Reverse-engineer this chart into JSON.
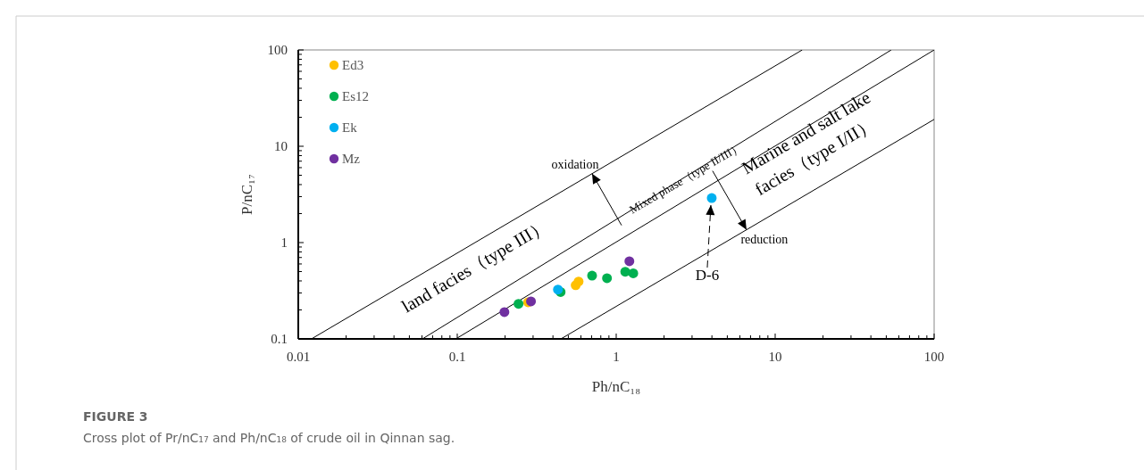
{
  "chart_data": {
    "type": "scatter",
    "xlabel": "Ph/nC₁₈",
    "ylabel": "P/nC₁₇",
    "log": "xy",
    "grid": false,
    "legend": "top left",
    "marker": "circle",
    "xlim": [
      0.01,
      100
    ],
    "ylim": [
      0.1,
      100
    ],
    "xticks": [
      0.01,
      {
        "value": 0.02,
        "label": null
      },
      {
        "value": 0.03,
        "label": null
      },
      {
        "value": 0.04,
        "label": null
      },
      {
        "value": 0.05,
        "label": null
      },
      {
        "value": 0.06,
        "label": null
      },
      {
        "value": 0.07,
        "label": null
      },
      {
        "value": 0.08,
        "label": null
      },
      {
        "value": 0.09,
        "label": null
      },
      0.1,
      {
        "value": 0.2,
        "label": null
      },
      {
        "value": 0.3,
        "label": null
      },
      {
        "value": 0.4,
        "label": null
      },
      {
        "value": 0.5,
        "label": null
      },
      {
        "value": 0.6,
        "label": null
      },
      {
        "value": 0.7,
        "label": null
      },
      {
        "value": 0.8,
        "label": null
      },
      {
        "value": 0.9,
        "label": null
      },
      1,
      {
        "value": 2,
        "label": null
      },
      {
        "value": 3,
        "label": null
      },
      {
        "value": 4,
        "label": null
      },
      {
        "value": 5,
        "label": null
      },
      {
        "value": 6,
        "label": null
      },
      {
        "value": 7,
        "label": null
      },
      {
        "value": 8,
        "label": null
      },
      {
        "value": 9,
        "label": null
      },
      10,
      {
        "value": 20,
        "label": null
      },
      {
        "value": 30,
        "label": null
      },
      {
        "value": 40,
        "label": null
      },
      {
        "value": 50,
        "label": null
      },
      {
        "value": 60,
        "label": null
      },
      {
        "value": 70,
        "label": null
      },
      {
        "value": 80,
        "label": null
      },
      {
        "value": 90,
        "label": null
      },
      100
    ],
    "yticks": [
      0.1,
      {
        "value": 0.2,
        "label": null
      },
      {
        "value": 0.3,
        "label": null
      },
      {
        "value": 0.4,
        "label": null
      },
      {
        "value": 0.5,
        "label": null
      },
      {
        "value": 0.6,
        "label": null
      },
      {
        "value": 0.7,
        "label": null
      },
      {
        "value": 0.8,
        "label": null
      },
      {
        "value": 0.9,
        "label": null
      },
      1,
      {
        "value": 2,
        "label": null
      },
      {
        "value": 3,
        "label": null
      },
      {
        "value": 4,
        "label": null
      },
      {
        "value": 5,
        "label": null
      },
      {
        "value": 6,
        "label": null
      },
      {
        "value": 7,
        "label": null
      },
      {
        "value": 8,
        "label": null
      },
      {
        "value": 9,
        "label": null
      },
      10,
      {
        "value": 20,
        "label": null
      },
      {
        "value": 30,
        "label": null
      },
      {
        "value": 40,
        "label": null
      },
      {
        "value": 50,
        "label": null
      },
      {
        "value": 60,
        "label": null
      },
      {
        "value": 70,
        "label": null
      },
      {
        "value": 80,
        "label": null
      },
      {
        "value": 90,
        "label": null
      },
      100
    ],
    "series": [
      {
        "name": "Ed3",
        "color": "#ffc000",
        "x": [
          0.279,
          0.556,
          0.58
        ],
        "values": [
          0.24,
          0.361,
          0.394
        ]
      },
      {
        "name": "Es12",
        "color": "#00b050",
        "x": [
          0.243,
          0.447,
          0.705,
          0.875,
          1.14,
          1.28
        ],
        "values": [
          0.231,
          0.307,
          0.454,
          0.427,
          0.498,
          0.48
        ]
      },
      {
        "name": "Ek",
        "color": "#00b0f0",
        "x": [
          0.43,
          3.99
        ],
        "values": [
          0.325,
          2.9
        ]
      },
      {
        "name": "Mz",
        "color": "#7030a0",
        "x": [
          0.198,
          0.291,
          1.21
        ],
        "values": [
          0.19,
          0.245,
          0.64
        ]
      },
      {
        "type": "line",
        "color": "#000000",
        "marker": "none",
        "x": [
          0.0121,
          14.8
        ],
        "values": [
          0.1,
          100
        ]
      },
      {
        "type": "line",
        "color": "#000000",
        "marker": "none",
        "x": [
          0.0604,
          53.7
        ],
        "values": [
          0.1,
          100
        ]
      },
      {
        "type": "line",
        "color": "#000000",
        "marker": "none",
        "x": [
          0.098,
          100
        ],
        "values": [
          0.1,
          100
        ]
      },
      {
        "type": "line",
        "color": "#000000",
        "marker": "none",
        "x": [
          0.449,
          100
        ],
        "values": [
          0.1,
          19
        ]
      }
    ],
    "annotations": [
      "land facies（type III）",
      {
        "text": "Mixed phase（type II/III）",
        "x": 3.12,
        "y": 3.2
      },
      "Marine and salt lake facies（type I/II）",
      {
        "text": "oxidation",
        "x": 0.705,
        "y": 5.2
      },
      {
        "text": "reduction",
        "x": 6.6,
        "y": 1.36
      },
      {
        "text": "D-6",
        "x": 3.99,
        "y": 2.9
      },
      "FIGURE 3",
      "Cross plot of Pr/nC₁₇ and Ph/nC₁₈ of crude oil in Qinnan sag."
    ]
  }
}
